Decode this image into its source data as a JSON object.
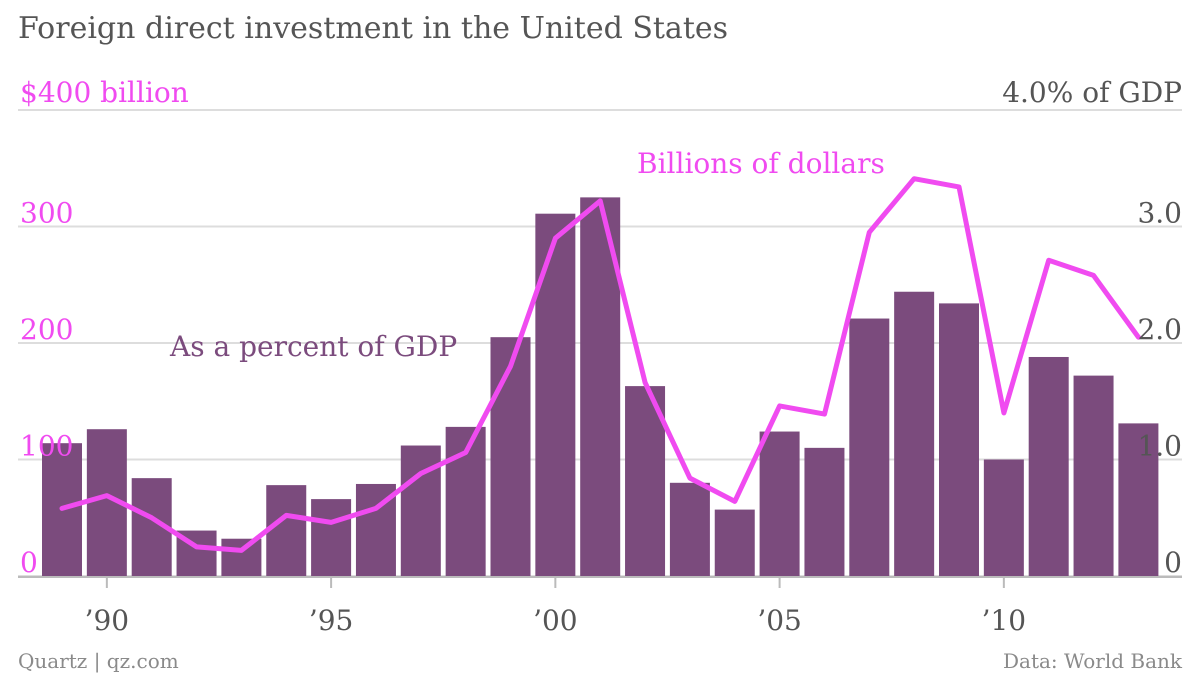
{
  "chart_data": {
    "type": "bar+line",
    "title": "Foreign direct investment in the United States",
    "left_axis": {
      "top_label": "$400 billion",
      "ticks": [
        {
          "value": 0,
          "label": "0"
        },
        {
          "value": 100,
          "label": "100"
        },
        {
          "value": 200,
          "label": "200"
        },
        {
          "value": 300,
          "label": "300"
        }
      ],
      "range": [
        0,
        400
      ]
    },
    "right_axis": {
      "top_label": "4.0% of GDP",
      "ticks": [
        {
          "value": 0,
          "label": "0"
        },
        {
          "value": 1.0,
          "label": "1.0"
        },
        {
          "value": 2.0,
          "label": "2.0"
        },
        {
          "value": 3.0,
          "label": "3.0"
        }
      ],
      "range": [
        0,
        4.0
      ]
    },
    "x_ticks": [
      {
        "year": 1990,
        "label": "’90"
      },
      {
        "year": 1995,
        "label": "’95"
      },
      {
        "year": 2000,
        "label": "’00"
      },
      {
        "year": 2005,
        "label": "’05"
      },
      {
        "year": 2010,
        "label": "’10"
      }
    ],
    "years": [
      1989,
      1990,
      1991,
      1992,
      1993,
      1994,
      1995,
      1996,
      1997,
      1998,
      1999,
      2000,
      2001,
      2002,
      2003,
      2004,
      2005,
      2006,
      2007,
      2008,
      2009,
      2010,
      2011,
      2012,
      2013
    ],
    "series": [
      {
        "name": "As a percent of GDP",
        "kind": "bar",
        "axis": "right",
        "color": "#7b4b7d",
        "values": [
          1.14,
          1.26,
          0.84,
          0.39,
          0.32,
          0.78,
          0.66,
          0.79,
          1.12,
          1.28,
          2.05,
          3.11,
          3.25,
          1.63,
          0.8,
          0.57,
          1.24,
          1.1,
          2.21,
          2.44,
          2.34,
          1.0,
          1.88,
          1.72,
          1.31
        ]
      },
      {
        "name": "Billions of dollars",
        "kind": "line",
        "axis": "left",
        "color": "#f04bf0",
        "values": [
          58,
          69,
          50,
          25,
          22,
          52,
          46,
          58,
          88,
          106,
          180,
          290,
          322,
          166,
          84,
          64,
          146,
          139,
          295,
          341,
          334,
          140,
          271,
          258,
          205
        ]
      }
    ],
    "annotations": [
      {
        "text": "As a percent of GDP",
        "series": "As a percent of GDP"
      },
      {
        "text": "Billions of dollars",
        "series": "Billions of dollars"
      }
    ],
    "grid": true
  },
  "footer": {
    "source_left": "Quartz | qz.com",
    "source_right": "Data: World Bank"
  },
  "colors": {
    "bar": "#7b4b7d",
    "line": "#f04bf0",
    "left_axis_text": "#f04bf0",
    "grid": "#dddddd"
  }
}
